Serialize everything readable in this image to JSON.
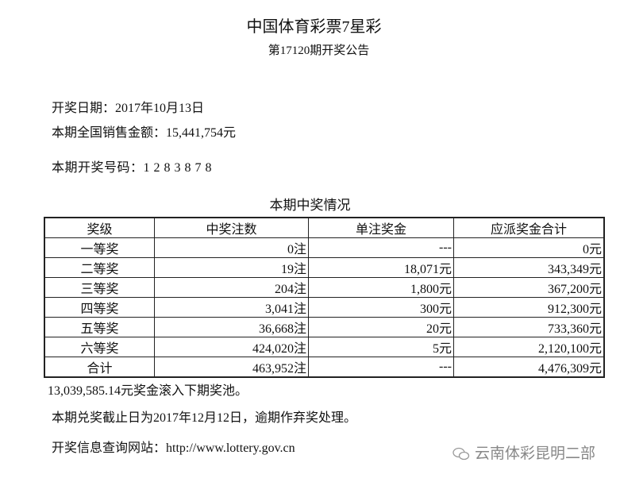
{
  "header": {
    "title": "中国体育彩票7星彩",
    "subtitle": "第17120期开奖公告"
  },
  "info": {
    "draw_date": "开奖日期：2017年10月13日",
    "sales": "本期全国销售金额：15,441,754元",
    "numbers": "本期开奖号码：1 2 8 3 8 7 8"
  },
  "table": {
    "caption": "本期中奖情况",
    "columns": [
      "奖级",
      "中奖注数",
      "单注奖金",
      "应派奖金合计"
    ],
    "rows": [
      [
        "一等奖",
        "0注",
        "---",
        "0元"
      ],
      [
        "二等奖",
        "19注",
        "18,071元",
        "343,349元"
      ],
      [
        "三等奖",
        "204注",
        "1,800元",
        "367,200元"
      ],
      [
        "四等奖",
        "3,041注",
        "300元",
        "912,300元"
      ],
      [
        "五等奖",
        "36,668注",
        "20元",
        "733,360元"
      ],
      [
        "六等奖",
        "424,020注",
        "5元",
        "2,120,100元"
      ],
      [
        "合计",
        "463,952注",
        "---",
        "4,476,309元"
      ]
    ]
  },
  "footer": {
    "rollover": "13,039,585.14元奖金滚入下期奖池。",
    "deadline": "本期兑奖截止日为2017年12月12日，逾期作弃奖处理。",
    "website": "开奖信息查询网站：http://www.lottery.gov.cn"
  },
  "watermark": {
    "icon": "wechat-icon",
    "text": "云南体彩昆明二部"
  }
}
